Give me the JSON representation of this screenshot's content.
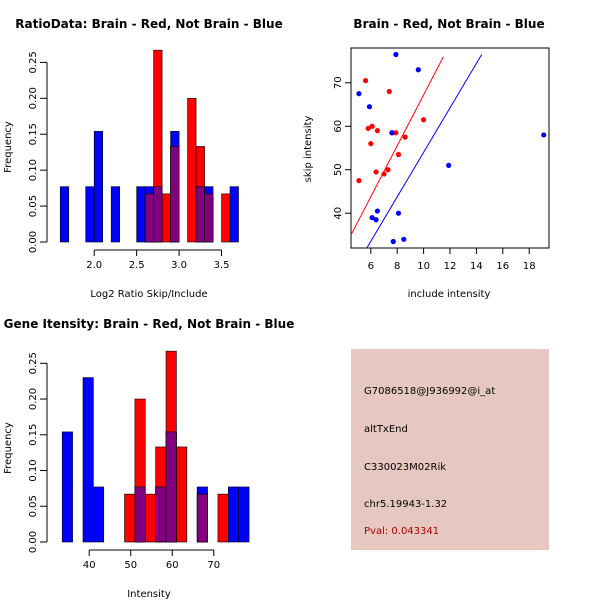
{
  "chart_data": [
    {
      "type": "bar",
      "title": "RatioData: Brain - Red, Not Brain - Blue",
      "xlabel": "Log2 Ratio Skip/Include",
      "ylabel": "Frequency",
      "xlim": [
        1.55,
        3.8
      ],
      "ylim": [
        0,
        0.27
      ],
      "xticks": [
        2.0,
        2.5,
        3.0,
        3.5
      ],
      "xtick_labels": [
        "2.0",
        "2.5",
        "3.0",
        "3.5"
      ],
      "yticks": [
        0,
        0.05,
        0.1,
        0.15,
        0.2,
        0.25
      ],
      "ytick_labels": [
        "0.00",
        "0.05",
        "0.10",
        "0.15",
        "0.20",
        "0.25"
      ],
      "bin_width": 0.1,
      "overlap_color": "#800080",
      "series": [
        {
          "name": "Not Brain",
          "color": "#0000ff",
          "bins": [
            [
              1.6,
              0.077
            ],
            [
              1.9,
              0.077
            ],
            [
              2.0,
              0.154
            ],
            [
              2.2,
              0.077
            ],
            [
              2.5,
              0.077
            ],
            [
              2.6,
              0.077
            ],
            [
              2.7,
              0.077
            ],
            [
              2.9,
              0.154
            ],
            [
              3.2,
              0.077
            ],
            [
              3.3,
              0.077
            ],
            [
              3.6,
              0.077
            ]
          ]
        },
        {
          "name": "Brain",
          "color": "#ff0000",
          "bins": [
            [
              2.6,
              0.067
            ],
            [
              2.7,
              0.267
            ],
            [
              2.8,
              0.067
            ],
            [
              2.9,
              0.133
            ],
            [
              3.1,
              0.2
            ],
            [
              3.2,
              0.133
            ],
            [
              3.3,
              0.067
            ],
            [
              3.5,
              0.067
            ]
          ]
        }
      ]
    },
    {
      "type": "scatter",
      "title": "Brain - Red, Not Brain - Blue",
      "xlabel": "include intensity",
      "ylabel": "skip intensity",
      "xlim": [
        4.5,
        19.5
      ],
      "ylim": [
        32,
        78
      ],
      "xticks": [
        6,
        8,
        10,
        12,
        14,
        16,
        18
      ],
      "xtick_labels": [
        "6",
        "8",
        "10",
        "12",
        "14",
        "16",
        "18"
      ],
      "yticks": [
        40,
        50,
        60,
        70
      ],
      "ytick_labels": [
        "40",
        "50",
        "60",
        "70"
      ],
      "series": [
        {
          "name": "Brain",
          "color": "#ff0000",
          "points": [
            [
              5.1,
              47.5
            ],
            [
              5.6,
              70.5
            ],
            [
              5.8,
              59.5
            ],
            [
              6.0,
              56.0
            ],
            [
              6.1,
              60.0
            ],
            [
              6.4,
              49.5
            ],
            [
              6.5,
              59.0
            ],
            [
              7.0,
              49.0
            ],
            [
              7.3,
              50.0
            ],
            [
              7.4,
              68.0
            ],
            [
              7.6,
              58.5
            ],
            [
              7.9,
              58.5
            ],
            [
              8.1,
              53.5
            ],
            [
              8.6,
              57.5
            ],
            [
              10.0,
              61.5
            ]
          ],
          "fit_line": [
            [
              4.5,
              35.0
            ],
            [
              11.5,
              76.0
            ]
          ]
        },
        {
          "name": "Not Brain",
          "color": "#0000ff",
          "points": [
            [
              5.1,
              67.5
            ],
            [
              5.9,
              64.5
            ],
            [
              6.1,
              39.0
            ],
            [
              6.4,
              38.5
            ],
            [
              6.5,
              40.5
            ],
            [
              7.6,
              58.5
            ],
            [
              7.7,
              33.5
            ],
            [
              7.9,
              76.5
            ],
            [
              8.1,
              40.0
            ],
            [
              8.5,
              34.0
            ],
            [
              9.6,
              73.0
            ],
            [
              11.9,
              51.0
            ],
            [
              19.1,
              58.0
            ]
          ],
          "fit_line": [
            [
              5.7,
              32.0
            ],
            [
              14.4,
              76.5
            ]
          ]
        }
      ]
    },
    {
      "type": "bar",
      "title": "Gene Itensity: Brain - Red, Not Brain - Blue",
      "xlabel": "Intensity",
      "ylabel": "Frequency",
      "xlim": [
        32,
        78
      ],
      "ylim": [
        0,
        0.27
      ],
      "xticks": [
        40,
        50,
        60,
        70
      ],
      "xtick_labels": [
        "40",
        "50",
        "60",
        "70"
      ],
      "yticks": [
        0,
        0.05,
        0.1,
        0.15,
        0.2,
        0.25
      ],
      "ytick_labels": [
        "0.00",
        "0.05",
        "0.10",
        "0.15",
        "0.20",
        "0.25"
      ],
      "bin_width": 2.5,
      "overlap_color": "#800080",
      "series": [
        {
          "name": "Not Brain",
          "color": "#0000ff",
          "bins": [
            [
              33.5,
              0.154
            ],
            [
              38.5,
              0.23
            ],
            [
              41.0,
              0.077
            ],
            [
              51.0,
              0.077
            ],
            [
              56.0,
              0.077
            ],
            [
              58.5,
              0.154
            ],
            [
              66.0,
              0.077
            ],
            [
              73.5,
              0.077
            ],
            [
              76.0,
              0.077
            ]
          ]
        },
        {
          "name": "Brain",
          "color": "#ff0000",
          "bins": [
            [
              48.5,
              0.067
            ],
            [
              51.0,
              0.2
            ],
            [
              53.5,
              0.067
            ],
            [
              56.0,
              0.133
            ],
            [
              58.5,
              0.267
            ],
            [
              61.0,
              0.133
            ],
            [
              66.0,
              0.067
            ],
            [
              71.0,
              0.067
            ]
          ]
        }
      ]
    }
  ],
  "info": {
    "probe_id": "G7086518@J936992@i_at",
    "event_type": "altTxEnd",
    "gene": "C330023M02Rik",
    "location": "chr5.19943-1.32",
    "pval": "Pval: 0.043341"
  }
}
